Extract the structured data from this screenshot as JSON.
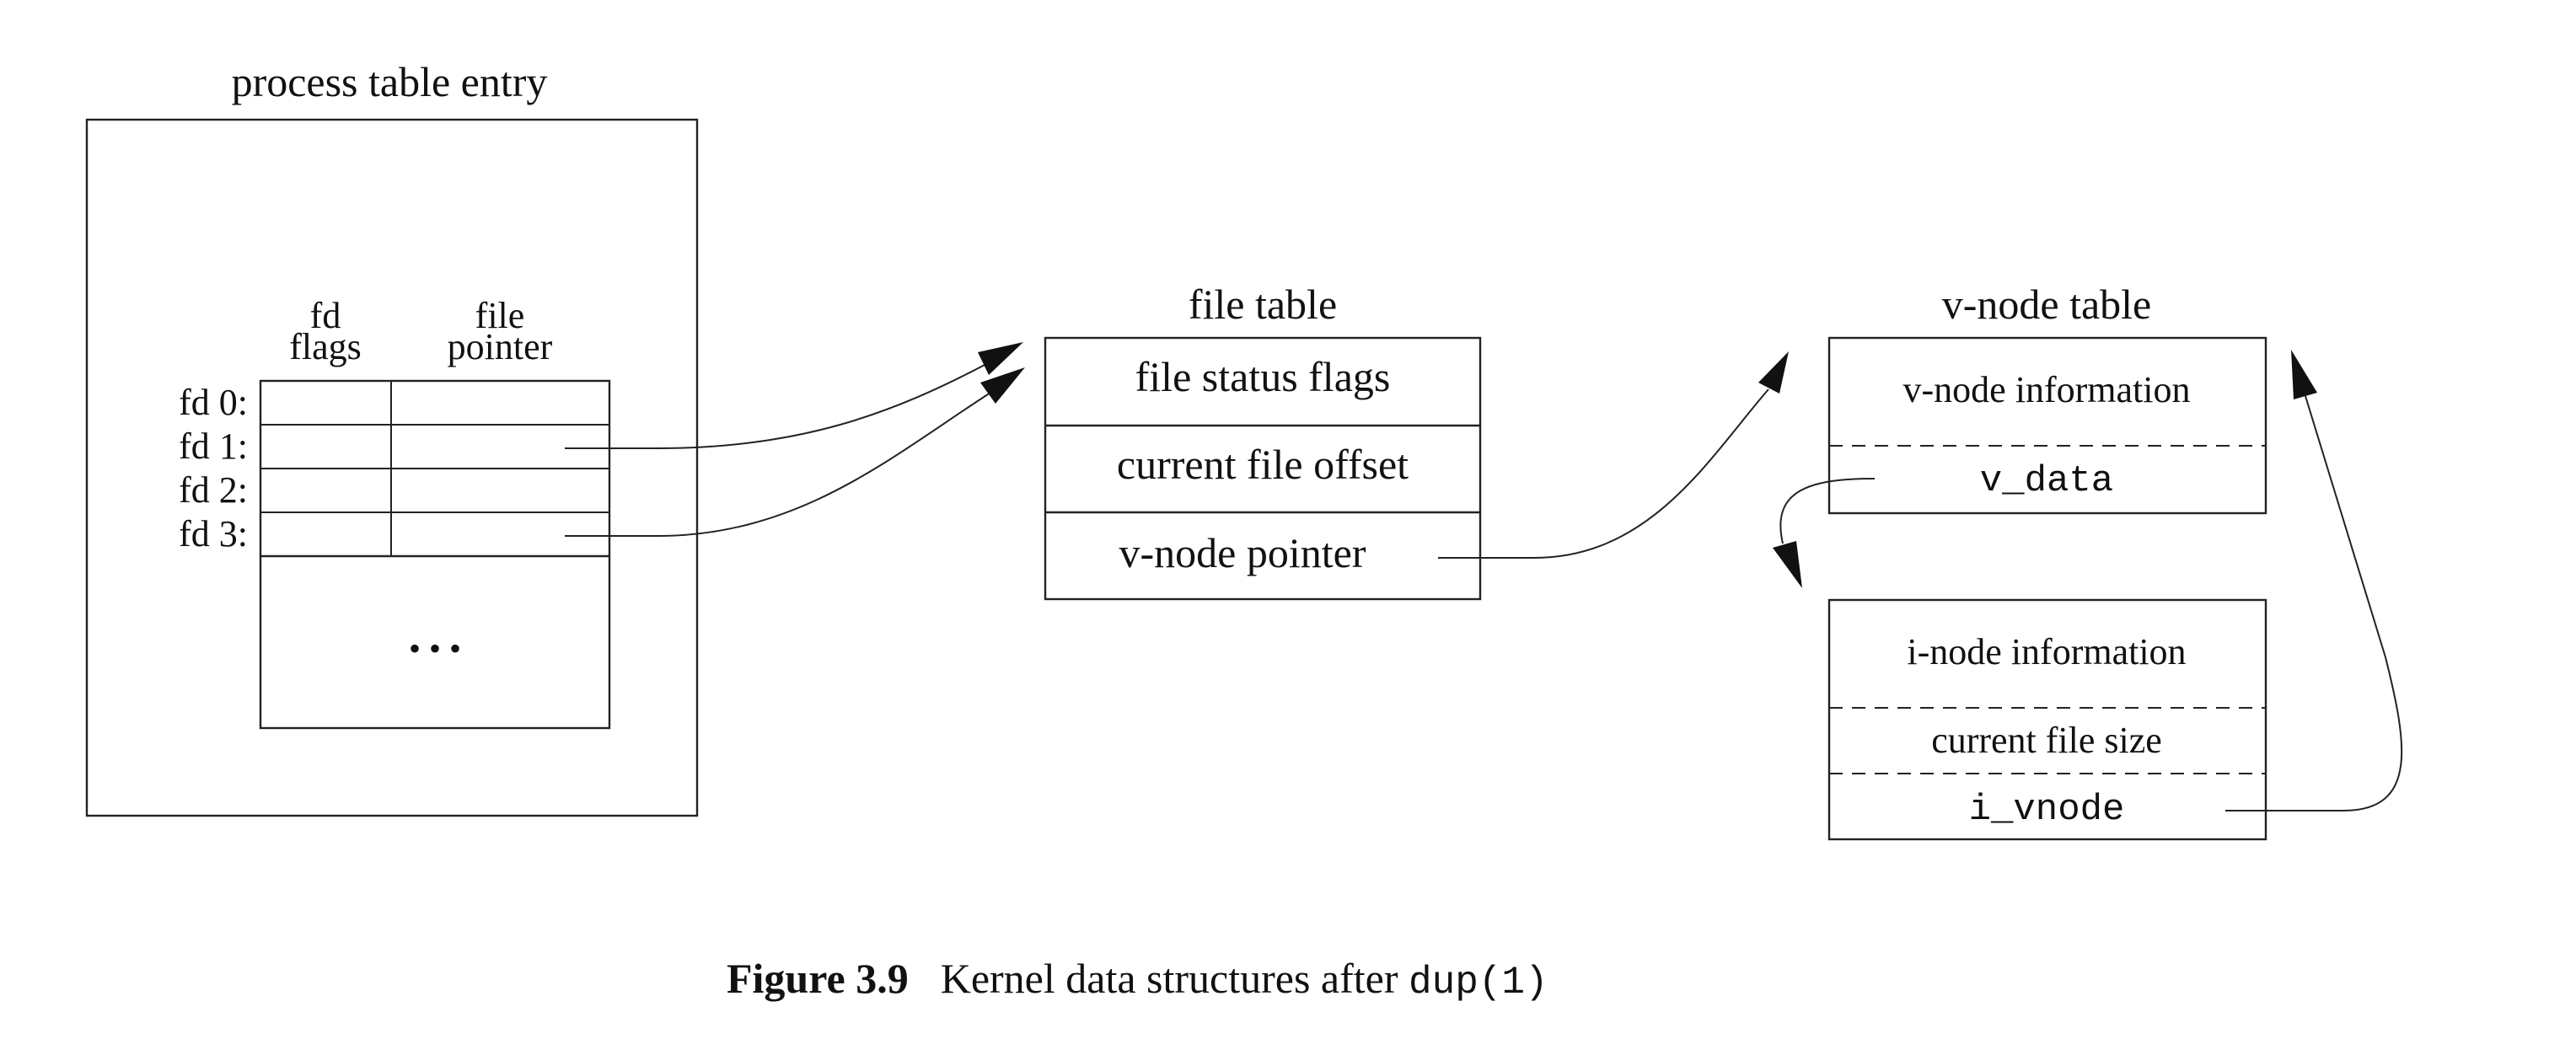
{
  "process_table": {
    "title": "process table entry",
    "col_fd_flags": [
      "fd",
      "flags"
    ],
    "col_file_pointer": [
      "file",
      "pointer"
    ],
    "rows": [
      "fd 0:",
      "fd 1:",
      "fd 2:",
      "fd 3:"
    ],
    "ellipsis": "• • •"
  },
  "file_table": {
    "title": "file table",
    "rows": [
      "file status flags",
      "current file offset",
      "v-node pointer"
    ]
  },
  "vnode_table": {
    "title": "v-node table",
    "vnode_info": "v-node information",
    "v_data": "v_data",
    "inode_info": "i-node information",
    "file_size": "current file size",
    "i_vnode": "i_vnode"
  },
  "caption": {
    "label": "Figure 3.9",
    "text": "Kernel data structures after ",
    "code": "dup(1)"
  }
}
